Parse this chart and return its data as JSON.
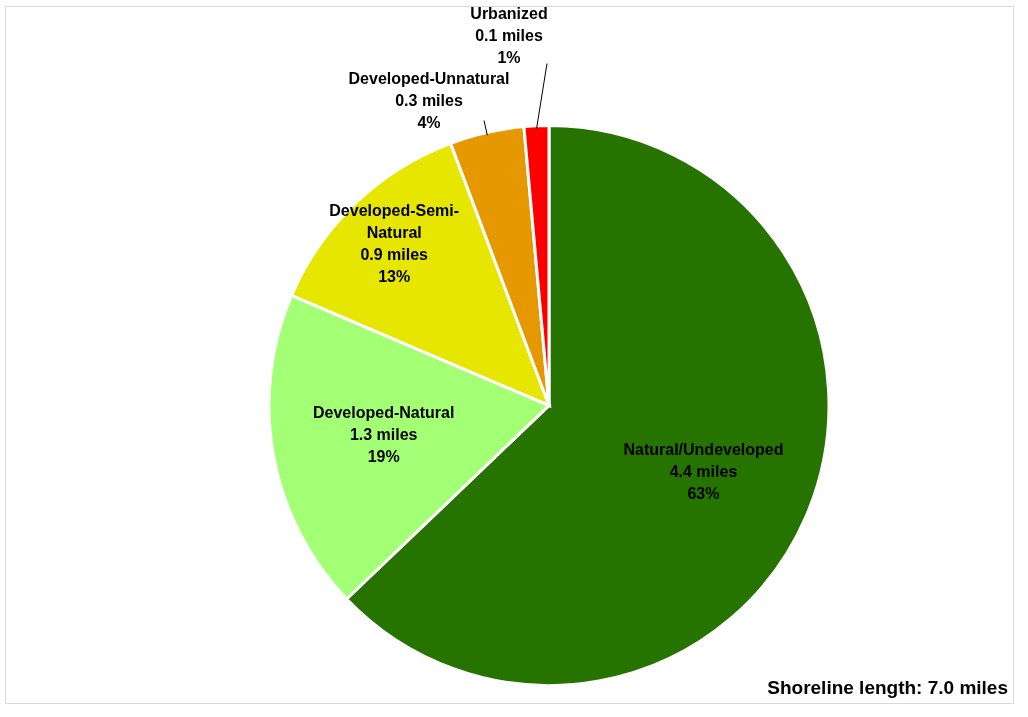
{
  "chart_data": {
    "type": "pie",
    "categories": [
      "Natural/Undeveloped",
      "Developed-Natural",
      "Developed-Semi-Natural",
      "Developed-Unnatural",
      "Urbanized"
    ],
    "values": [
      4.4,
      1.3,
      0.9,
      0.3,
      0.1
    ],
    "value_labels": [
      "4.4 miles\n63%",
      "1.3 miles\n19%",
      "0.9 miles\n13%",
      "0.3 miles\n4%",
      "0.1 miles\n1%"
    ],
    "colors": [
      "#267300",
      "#a3ff73",
      "#e6e600",
      "#e69800",
      "#ff0000"
    ],
    "annotations": [
      "Shoreline length: 7.0 miles"
    ]
  }
}
